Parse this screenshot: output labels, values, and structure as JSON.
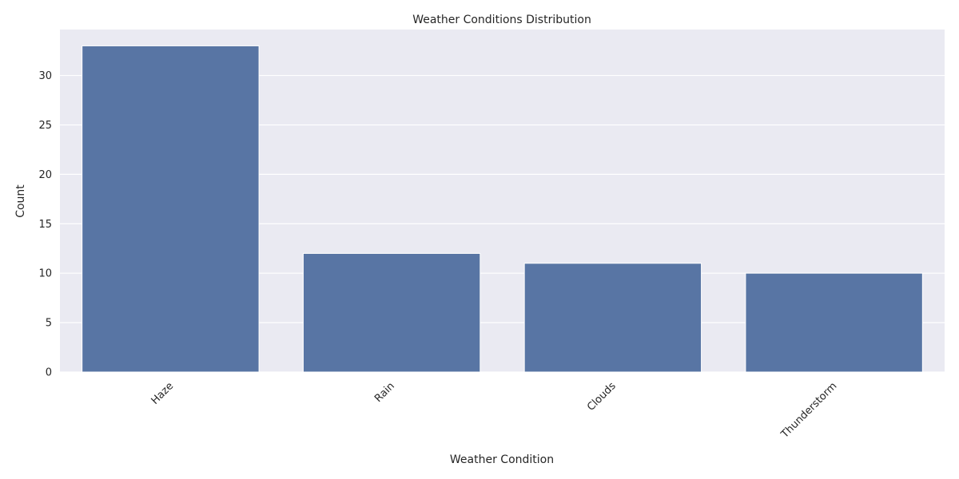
{
  "chart_data": {
    "type": "bar",
    "title": "Weather Conditions Distribution",
    "xlabel": "Weather Condition",
    "ylabel": "Count",
    "categories": [
      "Haze",
      "Rain",
      "Clouds",
      "Thunderstorm"
    ],
    "values": [
      33,
      12,
      11,
      10
    ],
    "ylim": [
      0,
      34.65
    ],
    "yticks": [
      0,
      5,
      10,
      15,
      20,
      25,
      30
    ],
    "grid": true,
    "legend": "none",
    "bar_color": "#5875a4",
    "background_color": "#eaeaf2",
    "grid_color": "#ffffff",
    "x_tick_rotation": -45
  }
}
